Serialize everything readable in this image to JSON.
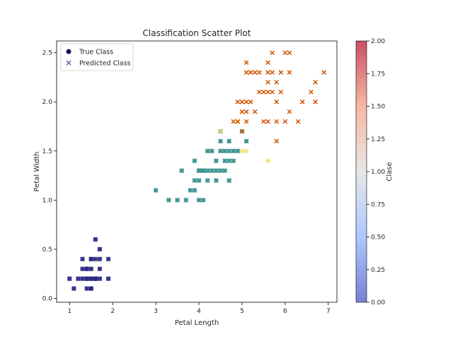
{
  "chart_data": {
    "type": "scatter",
    "title": "Classification Scatter Plot",
    "xlabel": "Petal Length",
    "ylabel": "Petal Width",
    "xlim": [
      0.7,
      7.2
    ],
    "ylim": [
      -0.04,
      2.62
    ],
    "xticks": [
      1,
      2,
      3,
      4,
      5,
      6,
      7
    ],
    "yticks": [
      0.0,
      0.5,
      1.0,
      1.5,
      2.0,
      2.5
    ],
    "ytick_labels": [
      "0.0",
      "0.5",
      "1.0",
      "1.5",
      "2.0",
      "2.5"
    ],
    "grid": false,
    "legend": {
      "placement": "top-left",
      "entries": [
        {
          "label": "True Class",
          "marker": "circle",
          "color": "#1b0c5a"
        },
        {
          "label": "Predicted Class",
          "marker": "x",
          "color": "#5662c0"
        }
      ]
    },
    "colorbar": {
      "label": "Clase",
      "cmap": "coolwarm",
      "range": [
        0.0,
        2.0
      ],
      "ticks": [
        "0.00",
        "0.25",
        "0.50",
        "0.75",
        "1.00",
        "1.25",
        "1.50",
        "1.75",
        "2.00"
      ]
    },
    "class_colors": {
      "true": [
        "#271873",
        "#3e9b93",
        "#f2de6f"
      ],
      "predicted": [
        "#2b2f8f",
        "#3a8d8d",
        "#d35400"
      ]
    },
    "series": [
      {
        "marker": "circle+x",
        "class": 0,
        "points": [
          [
            1.0,
            0.2
          ],
          [
            1.1,
            0.1
          ],
          [
            1.2,
            0.2
          ],
          [
            1.3,
            0.2
          ],
          [
            1.4,
            0.2
          ],
          [
            1.5,
            0.2
          ],
          [
            1.6,
            0.2
          ],
          [
            1.7,
            0.2
          ],
          [
            1.9,
            0.2
          ],
          [
            1.3,
            0.3
          ],
          [
            1.4,
            0.3
          ],
          [
            1.5,
            0.3
          ],
          [
            1.7,
            0.3
          ],
          [
            1.4,
            0.1
          ],
          [
            1.5,
            0.1
          ],
          [
            1.5,
            0.4
          ],
          [
            1.3,
            0.4
          ],
          [
            1.6,
            0.4
          ],
          [
            1.7,
            0.4
          ],
          [
            1.9,
            0.4
          ],
          [
            1.5,
            0.4
          ],
          [
            1.6,
            0.6
          ],
          [
            1.7,
            0.5
          ],
          [
            1.4,
            0.2
          ],
          [
            1.5,
            0.2
          ],
          [
            1.6,
            0.2
          ],
          [
            1.5,
            0.1
          ],
          [
            1.4,
            0.3
          ],
          [
            1.6,
            0.2
          ]
        ]
      },
      {
        "marker": "circle+x",
        "class": 1,
        "points": [
          [
            3.0,
            1.1
          ],
          [
            3.3,
            1.0
          ],
          [
            3.5,
            1.0
          ],
          [
            3.7,
            1.0
          ],
          [
            3.6,
            1.3
          ],
          [
            3.8,
            1.1
          ],
          [
            3.9,
            1.1
          ],
          [
            3.9,
            1.2
          ],
          [
            3.9,
            1.4
          ],
          [
            4.0,
            1.0
          ],
          [
            4.1,
            1.0
          ],
          [
            4.0,
            1.2
          ],
          [
            4.0,
            1.3
          ],
          [
            4.1,
            1.3
          ],
          [
            4.2,
            1.3
          ],
          [
            4.2,
            1.2
          ],
          [
            4.3,
            1.3
          ],
          [
            4.4,
            1.3
          ],
          [
            4.4,
            1.4
          ],
          [
            4.5,
            1.3
          ],
          [
            4.6,
            1.3
          ],
          [
            4.5,
            1.5
          ],
          [
            4.6,
            1.4
          ],
          [
            4.7,
            1.4
          ],
          [
            4.7,
            1.5
          ],
          [
            4.7,
            1.6
          ],
          [
            4.8,
            1.4
          ],
          [
            4.8,
            1.5
          ],
          [
            4.9,
            1.5
          ],
          [
            5.0,
            1.7
          ],
          [
            4.4,
            1.2
          ],
          [
            4.5,
            1.6
          ],
          [
            4.7,
            1.2
          ],
          [
            4.3,
            1.5
          ],
          [
            4.6,
            1.5
          ],
          [
            5.1,
            1.6
          ],
          [
            4.5,
            1.7
          ],
          [
            4.2,
            1.5
          ],
          [
            4.1,
            1.3
          ],
          [
            4.0,
            1.3
          ]
        ]
      },
      {
        "marker": "circle",
        "class": 2,
        "points": [
          [
            4.5,
            1.7
          ],
          [
            5.0,
            1.5
          ],
          [
            5.1,
            1.5
          ],
          [
            5.6,
            1.4
          ],
          [
            4.9,
            1.8
          ]
        ]
      },
      {
        "marker": "x",
        "class": 2,
        "points": [
          [
            5.1,
            2.4
          ],
          [
            5.6,
            2.4
          ],
          [
            5.7,
            2.5
          ],
          [
            6.0,
            2.5
          ],
          [
            6.1,
            2.5
          ],
          [
            5.1,
            2.3
          ],
          [
            5.2,
            2.3
          ],
          [
            5.3,
            2.3
          ],
          [
            5.4,
            2.3
          ],
          [
            5.6,
            2.3
          ],
          [
            5.7,
            2.3
          ],
          [
            5.9,
            2.3
          ],
          [
            6.1,
            2.3
          ],
          [
            6.9,
            2.3
          ],
          [
            5.6,
            2.2
          ],
          [
            5.8,
            2.2
          ],
          [
            6.7,
            2.2
          ],
          [
            5.4,
            2.1
          ],
          [
            5.5,
            2.1
          ],
          [
            5.6,
            2.1
          ],
          [
            5.7,
            2.1
          ],
          [
            5.9,
            2.1
          ],
          [
            6.6,
            2.1
          ],
          [
            5.8,
            2.0
          ],
          [
            6.4,
            2.0
          ],
          [
            6.7,
            2.0
          ],
          [
            4.9,
            2.0
          ],
          [
            5.0,
            2.0
          ],
          [
            5.1,
            2.0
          ],
          [
            5.2,
            2.0
          ],
          [
            5.1,
            1.9
          ],
          [
            5.0,
            1.9
          ],
          [
            5.3,
            1.9
          ],
          [
            6.1,
            1.9
          ],
          [
            4.8,
            1.8
          ],
          [
            4.9,
            1.8
          ],
          [
            5.1,
            1.8
          ],
          [
            5.5,
            1.8
          ],
          [
            5.6,
            1.8
          ],
          [
            5.8,
            1.8
          ],
          [
            6.0,
            1.8
          ],
          [
            6.3,
            1.8
          ],
          [
            5.8,
            1.6
          ],
          [
            5.0,
            1.7
          ]
        ]
      }
    ]
  }
}
